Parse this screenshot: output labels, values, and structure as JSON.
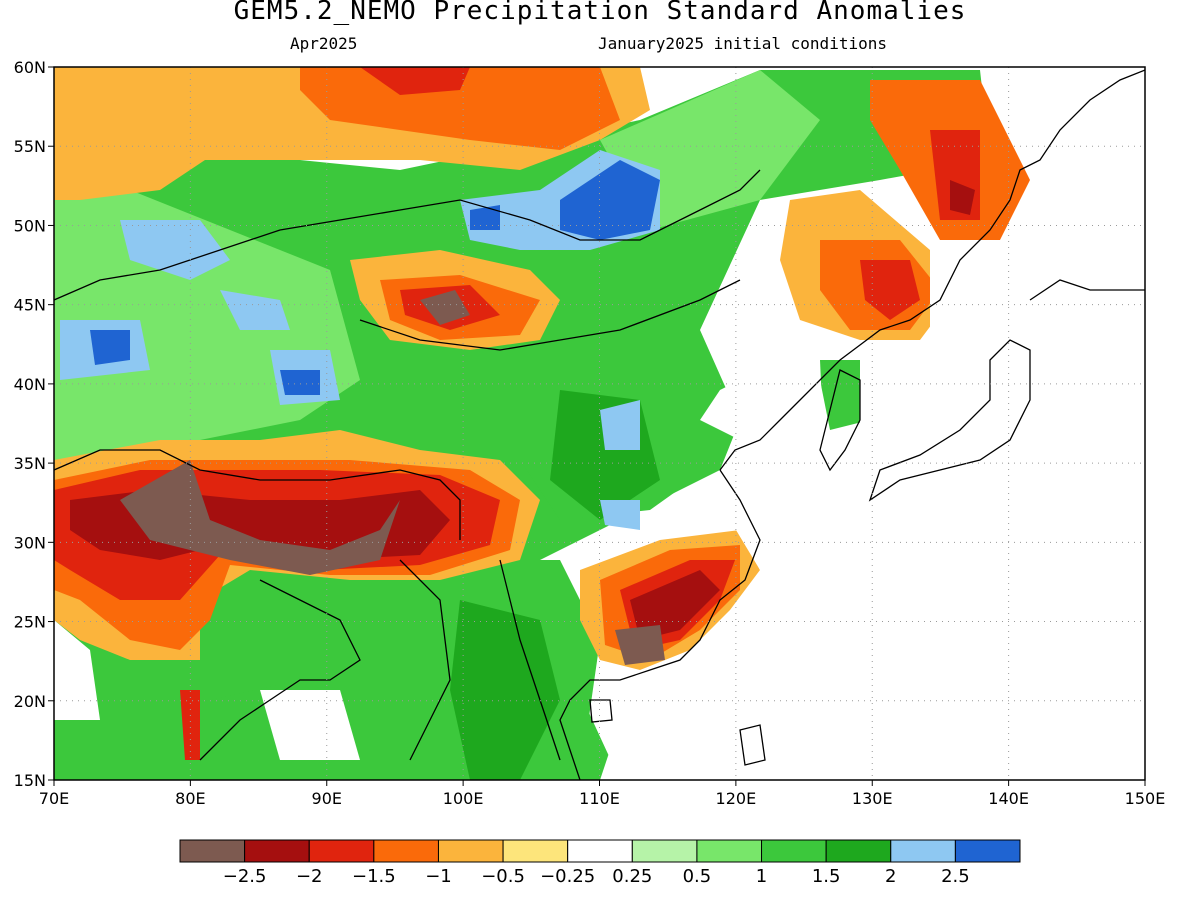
{
  "title": "GEM5.2_NEMO Precipitation Standard Anomalies",
  "subtitle_left": "Apr2025",
  "subtitle_right": "January2025 initial conditions",
  "map": {
    "lon_range": [
      70,
      150
    ],
    "lat_range": [
      15,
      60
    ],
    "lon_ticks": [
      "70E",
      "80E",
      "90E",
      "100E",
      "110E",
      "120E",
      "130E",
      "140E",
      "150E"
    ],
    "lat_ticks": [
      "60N",
      "55N",
      "50N",
      "45N",
      "40N",
      "35N",
      "30N",
      "25N",
      "20N",
      "15N"
    ],
    "gridlines": "dotted",
    "background_color": "#ffffff"
  },
  "colorbar": {
    "colors": [
      "#7d5a50",
      "#a50f0f",
      "#e0240e",
      "#fa6a0a",
      "#fbb43c",
      "#fde57b",
      "#ffffff",
      "#b6f3a8",
      "#78e66a",
      "#3cc83c",
      "#1ea81e",
      "#8ec8f2",
      "#1f64d2"
    ],
    "labels": [
      "−2.5",
      "−2",
      "−1.5",
      "−1",
      "−0.5",
      "−0.25",
      "0.25",
      "0.5",
      "1",
      "1.5",
      "2",
      "2.5"
    ]
  }
}
